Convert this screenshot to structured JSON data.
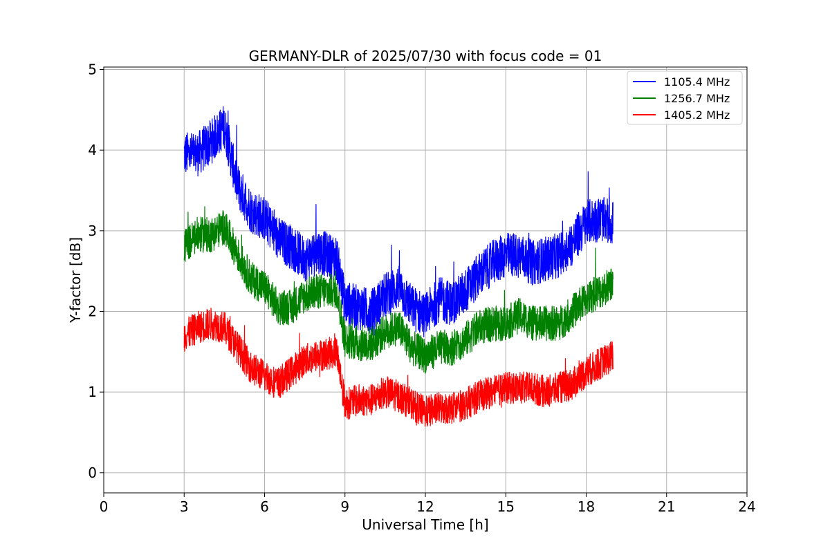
{
  "chart_data": {
    "type": "line",
    "title": "GERMANY-DLR of 2025/07/30 with focus code = 01",
    "xlabel": "Universal Time [h]",
    "ylabel": "Y-factor [dB]",
    "xlim": [
      0,
      24
    ],
    "ylim": [
      -0.25,
      5.03
    ],
    "xticks": [
      0,
      3,
      6,
      9,
      12,
      15,
      18,
      21,
      24
    ],
    "yticks": [
      0,
      1,
      2,
      3,
      4,
      5
    ],
    "grid": true,
    "legend_position": "top-right",
    "x": [
      3.0,
      3.5,
      4.0,
      4.5,
      5.0,
      5.5,
      6.0,
      6.5,
      7.0,
      7.5,
      8.0,
      8.7,
      9.0,
      9.5,
      10.0,
      10.5,
      11.0,
      11.5,
      12.0,
      12.5,
      13.0,
      13.5,
      14.0,
      14.5,
      15.0,
      15.5,
      16.0,
      16.5,
      17.0,
      17.5,
      18.0,
      18.5,
      19.0
    ],
    "series": [
      {
        "name": "1105.4 MHz",
        "color": "#0000ff",
        "values": [
          3.95,
          3.95,
          4.1,
          4.3,
          3.55,
          3.25,
          3.15,
          2.9,
          2.8,
          2.65,
          2.75,
          2.65,
          2.1,
          2.05,
          2.0,
          2.2,
          2.3,
          2.05,
          1.95,
          2.15,
          2.1,
          2.25,
          2.45,
          2.6,
          2.7,
          2.7,
          2.6,
          2.65,
          2.7,
          2.85,
          3.1,
          3.15,
          3.1
        ],
        "band": 0.28
      },
      {
        "name": "1256.7 MHz",
        "color": "#008000",
        "values": [
          2.8,
          2.95,
          2.95,
          3.05,
          2.7,
          2.4,
          2.3,
          2.05,
          2.05,
          2.2,
          2.25,
          2.25,
          1.65,
          1.6,
          1.6,
          1.75,
          1.8,
          1.55,
          1.45,
          1.55,
          1.55,
          1.65,
          1.8,
          1.85,
          1.85,
          1.95,
          1.85,
          1.85,
          1.85,
          2.0,
          2.15,
          2.25,
          2.35
        ],
        "band": 0.22
      },
      {
        "name": "1405.2 MHz",
        "color": "#ff0000",
        "values": [
          1.7,
          1.8,
          1.85,
          1.8,
          1.55,
          1.3,
          1.2,
          1.1,
          1.25,
          1.4,
          1.45,
          1.5,
          0.85,
          0.9,
          0.9,
          1.0,
          0.95,
          0.85,
          0.75,
          0.8,
          0.8,
          0.85,
          0.95,
          1.0,
          1.05,
          1.05,
          1.05,
          1.0,
          1.05,
          1.1,
          1.25,
          1.35,
          1.45
        ],
        "band": 0.2
      }
    ]
  }
}
